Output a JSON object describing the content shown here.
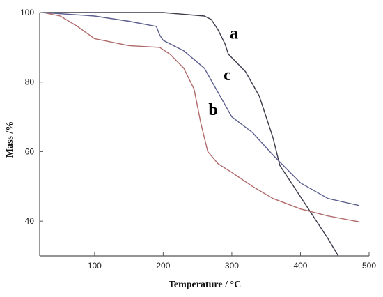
{
  "chart_data": {
    "type": "line",
    "title": "",
    "xlabel": "Temperature / °C",
    "ylabel": "Mass /%",
    "xlim": [
      20,
      500
    ],
    "ylim": [
      30,
      100
    ],
    "xticks": [
      "100",
      "200",
      "300",
      "400",
      "500"
    ],
    "yticks": [
      "100",
      "80",
      "60",
      "40"
    ],
    "grid": false,
    "series": [
      {
        "name": "a",
        "color": "#3a3a4a",
        "x": [
          25,
          100,
          200,
          260,
          270,
          280,
          290,
          295,
          300,
          320,
          340,
          360,
          370,
          380,
          400,
          420,
          440,
          455
        ],
        "y": [
          100,
          100,
          100,
          99,
          98,
          95,
          91,
          88,
          87,
          83,
          76,
          64,
          56,
          53,
          47,
          41,
          35,
          30
        ]
      },
      {
        "name": "b",
        "color": "#b06a6a",
        "x": [
          25,
          50,
          75,
          100,
          150,
          195,
          210,
          230,
          245,
          255,
          265,
          280,
          300,
          330,
          360,
          400,
          440,
          485
        ],
        "y": [
          100,
          99,
          96,
          92.5,
          90.5,
          90,
          88,
          84,
          78,
          68,
          60,
          56.5,
          54,
          50,
          46.5,
          43.5,
          41.5,
          39.8
        ]
      },
      {
        "name": "c",
        "color": "#5a5e8c",
        "x": [
          25,
          100,
          150,
          190,
          195,
          200,
          230,
          260,
          280,
          300,
          330,
          360,
          380,
          400,
          440,
          485
        ],
        "y": [
          100,
          99,
          97.5,
          96,
          93.5,
          92,
          89,
          84,
          77,
          70,
          65.5,
          59,
          55,
          51,
          46.5,
          44.5
        ]
      }
    ],
    "annotations": [
      {
        "text": "a",
        "x": 297,
        "y": 92.5
      },
      {
        "text": "c",
        "x": 288,
        "y": 80.5
      },
      {
        "text": "b",
        "x": 266,
        "y": 70.5
      }
    ]
  }
}
